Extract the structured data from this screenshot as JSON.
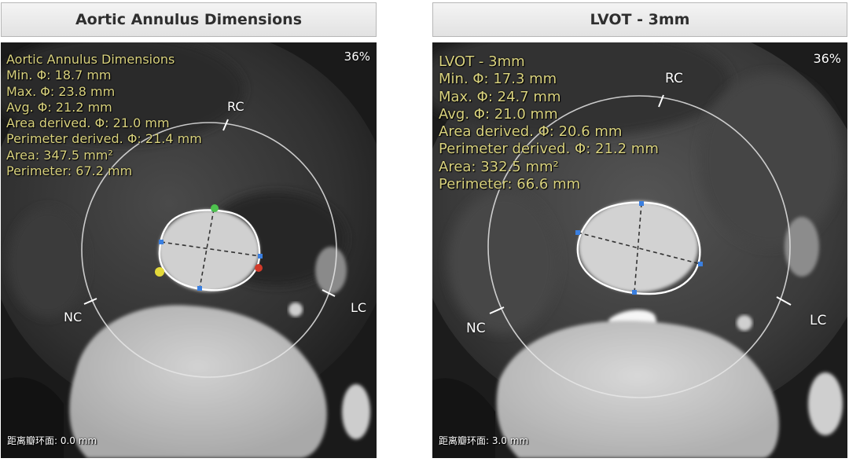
{
  "left_panel": {
    "header": "Aortic Annulus Dimensions",
    "zoom": "36%",
    "measurements": [
      "Aortic Annulus Dimensions",
      "Min. Φ: 18.7 mm",
      "Max. Φ: 23.8 mm",
      "Avg. Φ: 21.2 mm",
      "Area derived. Φ: 21.0 mm",
      "Perimeter derived. Φ: 21.4 mm",
      "Area: 347.5 mm²",
      "Perimeter: 67.2 mm"
    ],
    "cusp_labels": {
      "rc": "RC",
      "nc": "NC",
      "lc": "LC"
    },
    "distance": "距离瓣环面: 0.0 mm",
    "markers": {
      "green": "#4ec24e",
      "red": "#d23a2a",
      "yellow": "#e3d93a",
      "blue": "#3a7fe0"
    }
  },
  "right_panel": {
    "header": "LVOT - 3mm",
    "zoom": "36%",
    "measurements": [
      "LVOT - 3mm",
      "Min. Φ: 17.3 mm",
      "Max. Φ: 24.7 mm",
      "Avg. Φ: 21.0 mm",
      "Area derived. Φ: 20.6 mm",
      "Perimeter derived. Φ: 21.2 mm",
      "Area: 332.5 mm²",
      "Perimeter: 66.6 mm"
    ],
    "cusp_labels": {
      "rc": "RC",
      "nc": "NC",
      "lc": "LC"
    },
    "distance": "距离瓣环面: 3.0 mm"
  },
  "colors": {
    "measure_text": "#d9d27e",
    "ring": "#e6e6e6"
  }
}
